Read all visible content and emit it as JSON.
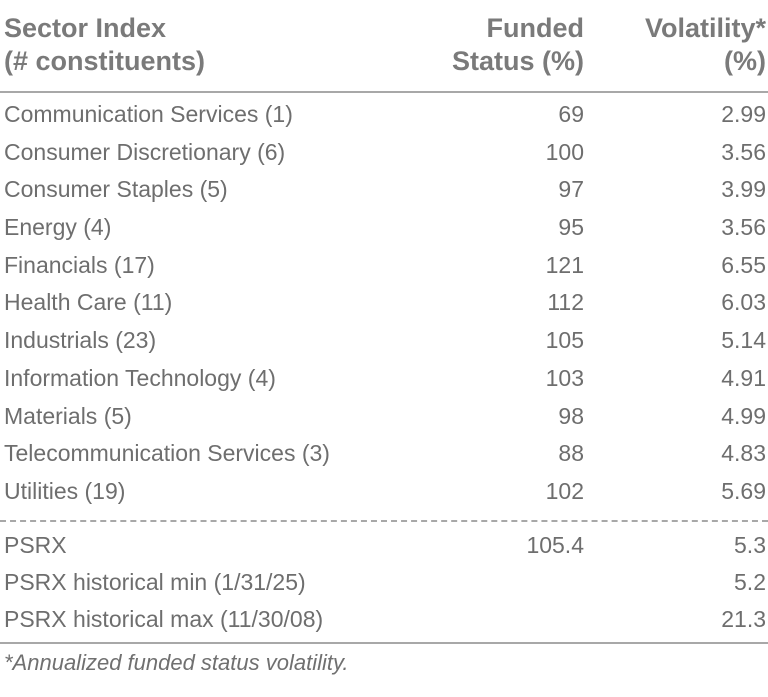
{
  "header": {
    "sector_line1": "Sector Index",
    "sector_line2": "(# constituents)",
    "funded_line1": "Funded",
    "funded_line2": "Status (%)",
    "vol_line1": "Volatility*",
    "vol_line2": "(%)"
  },
  "sectors": [
    {
      "name": "Communication Services (1)",
      "funded": "69",
      "vol": "2.99"
    },
    {
      "name": "Consumer Discretionary (6)",
      "funded": "100",
      "vol": "3.56"
    },
    {
      "name": "Consumer Staples (5)",
      "funded": "97",
      "vol": "3.99"
    },
    {
      "name": "Energy (4)",
      "funded": "95",
      "vol": "3.56"
    },
    {
      "name": "Financials (17)",
      "funded": "121",
      "vol": "6.55"
    },
    {
      "name": "Health Care (11)",
      "funded": "112",
      "vol": "6.03"
    },
    {
      "name": "Industrials (23)",
      "funded": "105",
      "vol": "5.14"
    },
    {
      "name": "Information Technology (4)",
      "funded": "103",
      "vol": "4.91"
    },
    {
      "name": "Materials (5)",
      "funded": "98",
      "vol": "4.99"
    },
    {
      "name": "Telecommunication Services (3)",
      "funded": "88",
      "vol": "4.83"
    },
    {
      "name": "Utilities (19)",
      "funded": "102",
      "vol": "5.69"
    }
  ],
  "summary": [
    {
      "name": "PSRX",
      "funded": "105.4",
      "vol": "5.3"
    },
    {
      "name": "PSRX historical min (1/31/25)",
      "funded": "",
      "vol": "5.2"
    },
    {
      "name": "PSRX historical max (11/30/08)",
      "funded": "",
      "vol": "21.3"
    }
  ],
  "footnote": "*Annualized funded status volatility.",
  "colors": {
    "text": "#6e6e6e",
    "header_text": "#7a7a7a",
    "rules": "#a8a8a8",
    "background": "#ffffff"
  }
}
